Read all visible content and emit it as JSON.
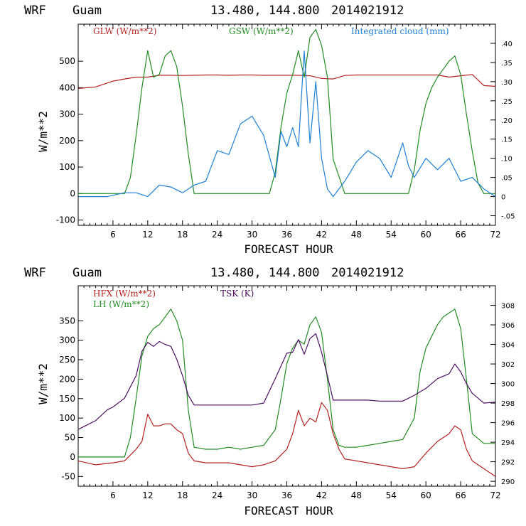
{
  "panels": [
    {
      "header_model": "WRF",
      "header_site": "Guam",
      "header_coords": "13.480, 144.800",
      "header_datetime": "2014021912",
      "ylabel": "W/m**2",
      "xlabel": "FORECAST HOUR",
      "legend": [
        "GLW (W/m**2)",
        "GSW (W/m**2)",
        "Integrated cloud (mm)"
      ],
      "xticks": [
        "6",
        "12",
        "18",
        "24",
        "30",
        "36",
        "42",
        "48",
        "54",
        "60",
        "66",
        "72"
      ],
      "yticks": [
        "-100",
        "0",
        "100",
        "200",
        "300",
        "400",
        "500"
      ],
      "rticks": [
        "-.05",
        "0",
        ".05",
        ".10",
        ".15",
        ".20",
        ".25",
        ".30",
        ".35",
        ".40"
      ]
    },
    {
      "header_model": "WRF",
      "header_site": "Guam",
      "header_coords": "13.480, 144.800",
      "header_datetime": "2014021912",
      "ylabel": "W/m**2",
      "xlabel": "FORECAST HOUR",
      "legend": [
        "HFX (W/m**2)",
        "LH (W/m**2)",
        "TSK (K)"
      ],
      "xticks": [
        "6",
        "12",
        "18",
        "24",
        "30",
        "36",
        "42",
        "48",
        "54",
        "60",
        "66",
        "72"
      ],
      "yticks": [
        "-50",
        "0",
        "50",
        "100",
        "150",
        "200",
        "250",
        "300",
        "350"
      ],
      "rticks": [
        "290",
        "292",
        "294",
        "296",
        "298",
        "300",
        "302",
        "304",
        "306",
        "308"
      ]
    }
  ],
  "chart_data": [
    {
      "type": "line",
      "xlim": [
        0,
        72
      ],
      "ylim": [
        -120,
        640
      ],
      "y2lim": [
        -0.075,
        0.45
      ],
      "series": [
        {
          "name": "GLW (W/m**2)",
          "axis": "left",
          "color": "#b22222",
          "x": [
            0,
            3,
            6,
            8,
            10,
            12,
            14,
            16,
            18,
            20,
            22,
            24,
            26,
            28,
            30,
            32,
            34,
            36,
            38,
            40,
            42,
            44,
            46,
            48,
            50,
            52,
            54,
            56,
            58,
            60,
            62,
            64,
            66,
            68,
            70,
            72
          ],
          "y": [
            397,
            403,
            425,
            433,
            440,
            440,
            447,
            447,
            446,
            447,
            448,
            448,
            447,
            448,
            448,
            447,
            447,
            447,
            447,
            445,
            435,
            433,
            446,
            448,
            448,
            448,
            448,
            448,
            448,
            448,
            448,
            440,
            445,
            450,
            408,
            405
          ]
        },
        {
          "name": "GSW (W/m**2)",
          "axis": "left",
          "color": "#228b22",
          "x": [
            0,
            8,
            9,
            10,
            11,
            12,
            13,
            14,
            15,
            16,
            17,
            18,
            19,
            20,
            22,
            24,
            26,
            28,
            30,
            32,
            33,
            34,
            35,
            36,
            37,
            38,
            39,
            40,
            41,
            42,
            43,
            44,
            46,
            48,
            50,
            52,
            54,
            56,
            57,
            58,
            59,
            60,
            61,
            62,
            63,
            64,
            65,
            66,
            67,
            68,
            69,
            70,
            72
          ],
          "y": [
            0,
            0,
            60,
            220,
            400,
            540,
            440,
            450,
            520,
            540,
            480,
            330,
            150,
            0,
            0,
            0,
            0,
            0,
            0,
            0,
            0,
            80,
            250,
            380,
            450,
            540,
            440,
            590,
            620,
            560,
            440,
            130,
            0,
            0,
            0,
            0,
            0,
            0,
            0,
            90,
            240,
            340,
            400,
            440,
            470,
            500,
            520,
            450,
            300,
            160,
            40,
            0,
            0
          ]
        },
        {
          "name": "Integrated cloud (mm)",
          "axis": "right",
          "color": "#1e7fd0",
          "x": [
            0,
            5,
            8,
            10,
            12,
            14,
            16,
            18,
            20,
            22,
            24,
            26,
            28,
            30,
            32,
            34,
            35,
            36,
            37,
            38,
            39,
            40,
            41,
            42,
            43,
            44,
            46,
            48,
            50,
            52,
            54,
            56,
            57,
            58,
            60,
            62,
            64,
            66,
            68,
            70,
            72
          ],
          "y": [
            0,
            0,
            0.01,
            0.01,
            0.0,
            0.03,
            0.025,
            0.01,
            0.03,
            0.04,
            0.12,
            0.11,
            0.19,
            0.21,
            0.16,
            0.05,
            0.17,
            0.13,
            0.18,
            0.13,
            0.38,
            0.14,
            0.3,
            0.1,
            0.02,
            0.0,
            0.04,
            0.09,
            0.12,
            0.1,
            0.05,
            0.14,
            0.08,
            0.05,
            0.1,
            0.07,
            0.1,
            0.04,
            0.05,
            0.02,
            0.0
          ]
        }
      ]
    },
    {
      "type": "line",
      "xlim": [
        0,
        72
      ],
      "ylim": [
        -75,
        440
      ],
      "y2lim": [
        289.5,
        310
      ],
      "series": [
        {
          "name": "HFX (W/m**2)",
          "axis": "left",
          "color": "#b22222",
          "x": [
            0,
            3,
            6,
            8,
            10,
            11,
            12,
            13,
            14,
            15,
            16,
            17,
            18,
            19,
            20,
            22,
            24,
            26,
            28,
            30,
            32,
            34,
            35,
            36,
            37,
            38,
            39,
            40,
            41,
            42,
            43,
            44,
            45,
            46,
            48,
            50,
            52,
            54,
            56,
            58,
            60,
            62,
            63,
            64,
            65,
            66,
            67,
            68,
            70,
            72
          ],
          "y": [
            -10,
            -20,
            -15,
            -10,
            20,
            40,
            110,
            80,
            80,
            85,
            85,
            70,
            60,
            10,
            -10,
            -15,
            -15,
            -15,
            -20,
            -25,
            -20,
            -10,
            5,
            20,
            60,
            120,
            80,
            100,
            90,
            140,
            120,
            60,
            20,
            -5,
            -10,
            -15,
            -20,
            -25,
            -30,
            -25,
            10,
            40,
            50,
            60,
            80,
            70,
            20,
            -10,
            -30,
            -50
          ]
        },
        {
          "name": "LH (W/m**2)",
          "axis": "left",
          "color": "#228b22",
          "x": [
            0,
            8,
            9,
            10,
            11,
            12,
            13,
            14,
            15,
            16,
            17,
            18,
            19,
            20,
            22,
            24,
            26,
            28,
            30,
            32,
            34,
            35,
            36,
            37,
            38,
            39,
            40,
            41,
            42,
            43,
            44,
            45,
            46,
            48,
            50,
            52,
            54,
            56,
            58,
            59,
            60,
            61,
            62,
            63,
            64,
            65,
            66,
            67,
            68,
            70,
            72
          ],
          "y": [
            0,
            0,
            50,
            150,
            260,
            310,
            330,
            340,
            360,
            380,
            350,
            300,
            120,
            25,
            20,
            20,
            25,
            20,
            25,
            30,
            70,
            150,
            240,
            280,
            300,
            290,
            340,
            360,
            320,
            200,
            70,
            30,
            25,
            25,
            30,
            35,
            40,
            45,
            100,
            220,
            280,
            310,
            340,
            360,
            370,
            380,
            330,
            200,
            60,
            35,
            35
          ]
        },
        {
          "name": "TSK (K)",
          "axis": "right",
          "color": "#4b0f5f",
          "x": [
            0,
            3,
            5,
            6,
            8,
            10,
            11,
            12,
            13,
            14,
            15,
            16,
            17,
            18,
            19,
            20,
            22,
            24,
            26,
            28,
            30,
            32,
            34,
            36,
            37,
            38,
            39,
            40,
            41,
            42,
            43,
            44,
            46,
            48,
            50,
            52,
            54,
            56,
            58,
            60,
            62,
            64,
            65,
            66,
            67,
            68,
            70,
            72
          ],
          "y": [
            295.3,
            296.2,
            297.3,
            297.6,
            298.5,
            300.8,
            303.3,
            304.2,
            303.8,
            304.3,
            304.0,
            303.8,
            302.5,
            300.8,
            298.8,
            297.8,
            297.8,
            297.8,
            297.8,
            297.8,
            297.8,
            298.0,
            300.5,
            303.1,
            303.2,
            304.5,
            303.0,
            304.6,
            305.1,
            303.2,
            300.8,
            298.3,
            298.3,
            298.3,
            298.3,
            298.2,
            298.2,
            298.2,
            298.8,
            299.5,
            300.5,
            301.0,
            302.0,
            301.2,
            300.0,
            299.0,
            298.0,
            298.1
          ]
        }
      ]
    }
  ]
}
